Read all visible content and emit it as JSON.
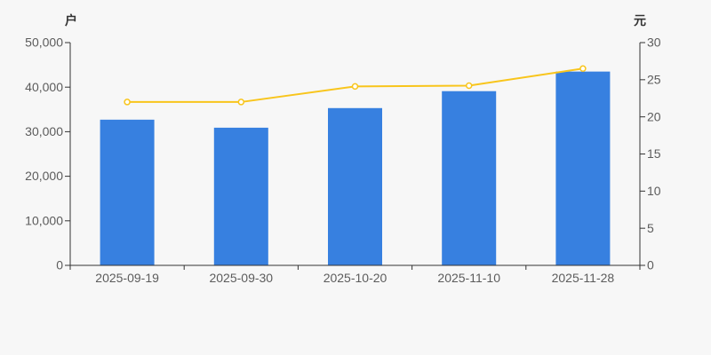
{
  "chart_data": {
    "type": "bar",
    "title": "",
    "categories": [
      "2025-09-19",
      "2025-09-30",
      "2025-10-20",
      "2025-11-10",
      "2025-11-28"
    ],
    "series": [
      {
        "name": "户",
        "type": "bar",
        "axis": "left",
        "values": [
          32700,
          30900,
          35300,
          39100,
          43500
        ]
      },
      {
        "name": "元",
        "type": "line",
        "axis": "right",
        "values": [
          22.0,
          22.0,
          24.1,
          24.2,
          26.5
        ]
      }
    ],
    "left_axis": {
      "label": "户",
      "range": [
        0,
        50000
      ],
      "tick_interval": 10000,
      "tick_labels": [
        "0",
        "10,000",
        "20,000",
        "30,000",
        "40,000",
        "50,000"
      ]
    },
    "right_axis": {
      "label": "元",
      "range": [
        0,
        30
      ],
      "tick_interval": 5,
      "tick_labels": [
        "0",
        "5",
        "10",
        "15",
        "20",
        "25",
        "30"
      ]
    },
    "xlabel": "",
    "ylabel_left": "户",
    "ylabel_right": "元",
    "grid": false,
    "legend": false,
    "colors": {
      "bar": "#3780e0",
      "line": "#f8c51c",
      "marker_fill": "#ffffff",
      "axis": "#333333",
      "tick_text": "#5c5c5c",
      "background": "#f7f7f7"
    }
  }
}
